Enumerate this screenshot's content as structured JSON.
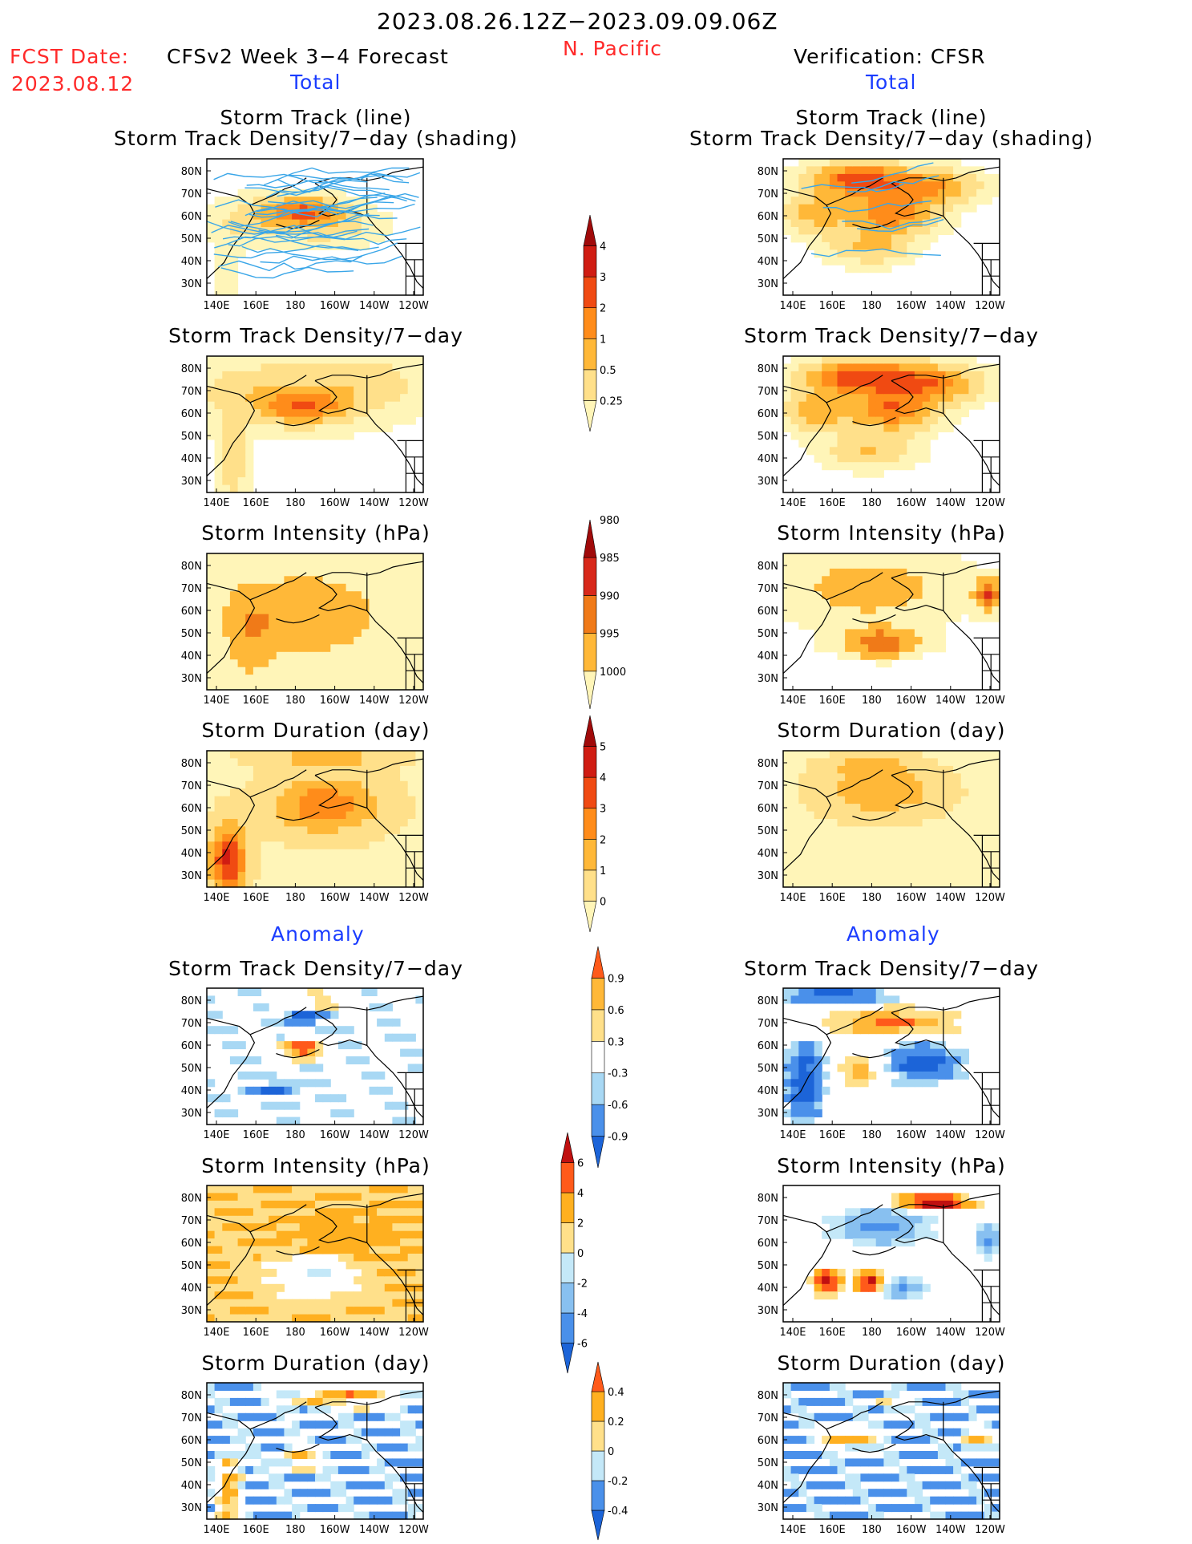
{
  "header": {
    "period": "2023.08.26.12Z−2023.09.09.06Z",
    "region": "N. Pacific",
    "fcst_date_label": "FCST Date:",
    "fcst_date": "2023.08.12",
    "left_title": "CFSv2 Week 3−4 Forecast",
    "right_title": "Verification: CFSR",
    "total_label": "Total",
    "anomaly_label": "Anomaly"
  },
  "panel_titles": {
    "track_line": "Storm Track (line)",
    "track_shading": "Storm Track Density/7−day (shading)",
    "density": "Storm Track Density/7−day",
    "intensity": "Storm Intensity (hPa)",
    "duration": "Storm Duration (day)"
  },
  "colors": {
    "frame": "#000000",
    "track_line": "#3aa6e8",
    "coast": "#000000"
  },
  "chart_data": {
    "type": "heatmap",
    "x_ticks": [
      "140E",
      "160E",
      "180",
      "160W",
      "140W",
      "120W"
    ],
    "y_ticks": [
      "80N",
      "70N",
      "60N",
      "50N",
      "40N",
      "30N"
    ],
    "colorbars": [
      {
        "id": "density_total",
        "levels": [
          "0.25",
          "0.5",
          "1",
          "2",
          "3",
          "4"
        ],
        "colors": [
          "#fff5b8",
          "#ffe08a",
          "#ffb838",
          "#ff8c1a",
          "#f04a12",
          "#d01c12",
          "#a00a0a"
        ]
      },
      {
        "id": "intensity_total",
        "levels": [
          "1000",
          "995",
          "990",
          "985",
          "980"
        ],
        "colors": [
          "#fff5b8",
          "#ffb838",
          "#f07a18",
          "#d8281a",
          "#a00a0a"
        ]
      },
      {
        "id": "duration_total",
        "levels": [
          "0",
          "1",
          "2",
          "3",
          "4",
          "5"
        ],
        "colors": [
          "#fff5b8",
          "#ffe08a",
          "#ffb838",
          "#ff8c1a",
          "#f04a12",
          "#d01c12",
          "#a00a0a"
        ]
      },
      {
        "id": "density_anom",
        "levels": [
          "-0.9",
          "-0.6",
          "-0.3",
          "0.3",
          "0.6",
          "0.9"
        ],
        "colors": [
          "#1c64d8",
          "#4a90ea",
          "#a8d8f4",
          "#ffffff",
          "#ffe08a",
          "#ffb838",
          "#ff5a1a"
        ]
      },
      {
        "id": "intensity_anom",
        "levels": [
          "-6",
          "-4",
          "-2",
          "0",
          "2",
          "4",
          "6"
        ],
        "colors": [
          "#1c64d8",
          "#4a90ea",
          "#88c0f0",
          "#c4e8f8",
          "#ffe08a",
          "#ffb020",
          "#ff5a1a",
          "#c01010"
        ]
      },
      {
        "id": "duration_anom",
        "levels": [
          "-0.4",
          "-0.2",
          "0",
          "0.2",
          "0.4"
        ],
        "colors": [
          "#1c64d8",
          "#4a90ea",
          "#c4e8f8",
          "#ffe08a",
          "#ffb020",
          "#ff5a1a"
        ]
      }
    ],
    "panels": [
      {
        "id": "fc_track",
        "side": "forecast",
        "title_keys": [
          "track_line",
          "track_shading"
        ]
      },
      {
        "id": "fc_density",
        "side": "forecast",
        "title": "density"
      },
      {
        "id": "fc_intensity",
        "side": "forecast",
        "title": "intensity"
      },
      {
        "id": "fc_duration",
        "side": "forecast",
        "title": "duration"
      },
      {
        "id": "fc_density_anom",
        "side": "forecast",
        "title": "density"
      },
      {
        "id": "fc_intensity_anom",
        "side": "forecast",
        "title": "intensity"
      },
      {
        "id": "fc_duration_anom",
        "side": "forecast",
        "title": "duration"
      },
      {
        "id": "vr_track",
        "side": "verification",
        "title_keys": [
          "track_line",
          "track_shading"
        ]
      },
      {
        "id": "vr_density",
        "side": "verification",
        "title": "density"
      },
      {
        "id": "vr_intensity",
        "side": "verification",
        "title": "intensity"
      },
      {
        "id": "vr_duration",
        "side": "verification",
        "title": "duration"
      },
      {
        "id": "vr_density_anom",
        "side": "verification",
        "title": "density"
      },
      {
        "id": "vr_intensity_anom",
        "side": "verification",
        "title": "intensity"
      },
      {
        "id": "vr_duration_anom",
        "side": "verification",
        "title": "duration"
      }
    ]
  }
}
